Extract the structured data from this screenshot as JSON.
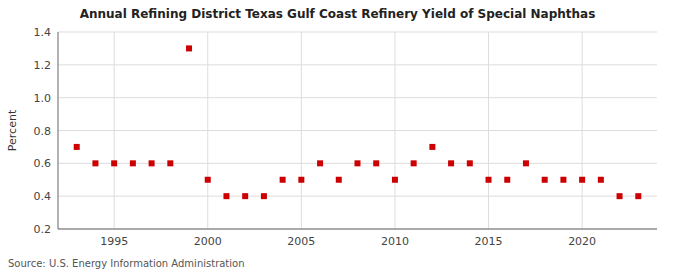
{
  "chart_data": {
    "type": "scatter",
    "title": "Annual Refining District Texas Gulf Coast Refinery Yield of Special Naphthas",
    "ylabel": "Percent",
    "source": "Source: U.S. Energy Information Administration",
    "color": "#cc0000",
    "marker": "square",
    "grid": true,
    "xlim": [
      1992,
      2024
    ],
    "xticks": [
      1995,
      2000,
      2005,
      2010,
      2015,
      2020
    ],
    "ylim": [
      0.2,
      1.4
    ],
    "yticks": [
      0.2,
      0.4,
      0.6,
      0.8,
      {
        "value": 1.0,
        "label": "1.0"
      },
      1.2,
      1.4
    ],
    "x": [
      1993,
      1994,
      1995,
      1996,
      1997,
      1998,
      1999,
      2000,
      2001,
      2002,
      2003,
      2004,
      2005,
      2006,
      2007,
      2008,
      2009,
      2010,
      2011,
      2012,
      2013,
      2014,
      2015,
      2016,
      2017,
      2018,
      2019,
      2020,
      2021,
      2022,
      2023
    ],
    "values": [
      0.7,
      0.6,
      0.6,
      0.6,
      0.6,
      0.6,
      1.3,
      0.5,
      0.4,
      0.4,
      0.4,
      0.5,
      0.5,
      0.6,
      0.5,
      0.6,
      0.6,
      0.5,
      0.6,
      0.7,
      0.6,
      0.6,
      0.5,
      0.5,
      0.6,
      0.5,
      0.5,
      0.5,
      0.5,
      0.4,
      0.4
    ]
  }
}
